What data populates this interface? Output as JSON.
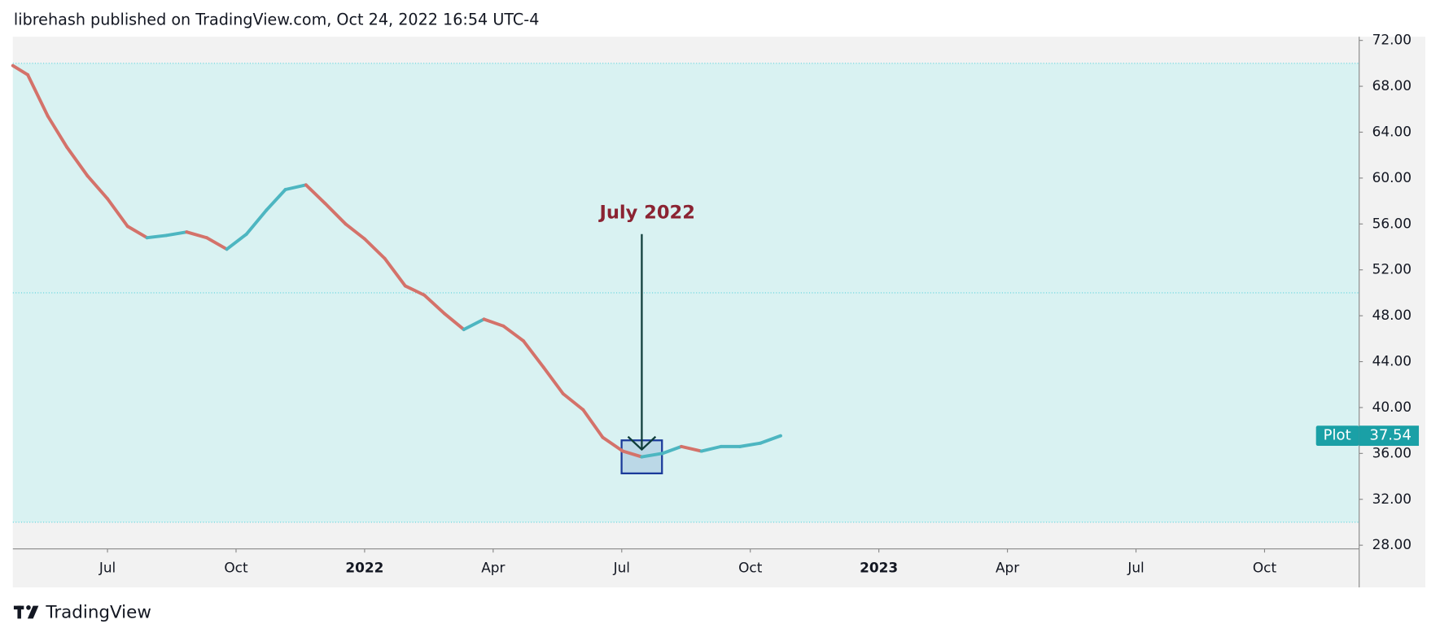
{
  "header": "librehash published on TradingView.com, Oct 24, 2022 16:54 UTC-4",
  "footer": "TradingView",
  "chart_data": {
    "type": "line",
    "x": [
      2021.316,
      2021.345,
      2021.384,
      2021.421,
      2021.461,
      2021.5,
      2021.539,
      2021.577,
      2021.614,
      2021.654,
      2021.693,
      2021.732,
      2021.77,
      2021.809,
      2021.846,
      2021.886,
      2021.923,
      2021.963,
      2022.0,
      2022.039,
      2022.079,
      2022.116,
      2022.155,
      2022.193,
      2022.232,
      2022.27,
      2022.309,
      2022.348,
      2022.386,
      2022.425,
      2022.463,
      2022.502,
      2022.539,
      2022.579,
      2022.616,
      2022.655,
      2022.693,
      2022.73,
      2022.77,
      2022.809
    ],
    "series": [
      {
        "name": "Plot",
        "up_color": "#4db6c1",
        "down_color": "#d4726a",
        "values": [
          69.8,
          69.0,
          65.4,
          62.7,
          60.2,
          58.2,
          55.8,
          54.8,
          55.0,
          55.3,
          54.8,
          53.8,
          55.1,
          57.2,
          59.0,
          59.4,
          57.8,
          56.0,
          54.7,
          53.0,
          50.6,
          49.8,
          48.2,
          46.8,
          47.7,
          47.1,
          45.8,
          43.5,
          41.2,
          39.8,
          37.4,
          36.2,
          35.7,
          36.0,
          36.6,
          36.2,
          36.6,
          36.6,
          36.9,
          37.54
        ]
      }
    ],
    "xlim": [
      2021.316,
      2023.934
    ],
    "xticks": [
      {
        "value": 2021.5,
        "label": "Jul"
      },
      {
        "value": 2021.75,
        "label": "Oct"
      },
      2022,
      {
        "value": 2022.25,
        "label": "Apr"
      },
      {
        "value": 2022.5,
        "label": "Jul"
      },
      {
        "value": 2022.75,
        "label": "Oct"
      },
      2023,
      {
        "value": 2023.25,
        "label": "Apr"
      },
      {
        "value": 2023.5,
        "label": "Jul"
      },
      {
        "value": 2023.75,
        "label": "Oct"
      }
    ],
    "ylim": [
      27.68,
      72.32
    ],
    "yticks": [
      {
        "value": 28,
        "label": "28.00"
      },
      {
        "value": 32,
        "label": "32.00"
      },
      {
        "value": 36,
        "label": "36.00"
      },
      {
        "value": 40,
        "label": "40.00"
      },
      {
        "value": 44,
        "label": "44.00"
      },
      {
        "value": 48,
        "label": "48.00"
      },
      {
        "value": 52,
        "label": "52.00"
      },
      {
        "value": 56,
        "label": "56.00"
      },
      {
        "value": 60,
        "label": "60.00"
      },
      {
        "value": 64,
        "label": "64.00"
      },
      {
        "value": 68,
        "label": "68.00"
      },
      {
        "value": 72,
        "label": "72.00"
      }
    ],
    "hlines": [
      30,
      50,
      70
    ],
    "band_color": "#d9f2f2",
    "annotation": {
      "text": "July 2022",
      "color": "#8b2332"
    }
  }
}
